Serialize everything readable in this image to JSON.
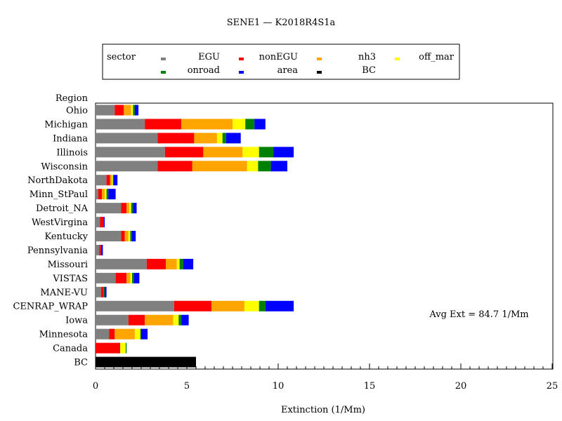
{
  "chart_data": {
    "type": "bar",
    "orientation": "horizontal",
    "stacked": true,
    "title": "SENE1 — K2018R4S1a",
    "xlabel": "Extinction (1/Mm)",
    "ylabel": "Region",
    "xlim": [
      0,
      25
    ],
    "xticks": [
      "0",
      "5",
      "10",
      "15",
      "20",
      "25"
    ],
    "legend": {
      "title": "sector",
      "placement": "top",
      "entries": [
        {
          "name": "EGU",
          "color": "#808080"
        },
        {
          "name": "nonEGU",
          "color": "#ff0000"
        },
        {
          "name": "nh3",
          "color": "#ffa500"
        },
        {
          "name": "off_mar",
          "color": "#ffff00"
        },
        {
          "name": "onroad",
          "color": "#008000"
        },
        {
          "name": "area",
          "color": "#0000ff"
        },
        {
          "name": "BC",
          "color": "#000000"
        }
      ]
    },
    "annotation": "Avg Ext =  84.7 1/Mm",
    "categories": [
      "Ohio",
      "Michigan",
      "Indiana",
      "Illinois",
      "Wisconsin",
      "NorthDakota",
      "Minn_StPaul",
      "Detroit_NA",
      "WestVirgina",
      "Kentucky",
      "Pennsylvania",
      "Missouri",
      "VISTAS",
      "MANE-VU",
      "CENRAP_WRAP",
      "Iowa",
      "Minnesota",
      "Canada",
      "BC"
    ],
    "series": [
      {
        "name": "EGU",
        "color": "#808080",
        "values": [
          1.05,
          2.7,
          3.4,
          3.8,
          3.4,
          0.6,
          0.15,
          1.4,
          0.25,
          1.4,
          0.2,
          2.8,
          1.1,
          0.3,
          4.3,
          1.8,
          0.75,
          0.0,
          0.0
        ]
      },
      {
        "name": "nonEGU",
        "color": "#ff0000",
        "values": [
          0.5,
          2.0,
          2.0,
          2.1,
          1.9,
          0.2,
          0.2,
          0.3,
          0.2,
          0.2,
          0.1,
          1.05,
          0.6,
          0.15,
          2.05,
          0.9,
          0.3,
          1.35,
          0.0
        ]
      },
      {
        "name": "nh3",
        "color": "#ffa500",
        "values": [
          0.4,
          2.8,
          1.25,
          2.15,
          3.0,
          0.1,
          0.15,
          0.15,
          0.0,
          0.2,
          0.0,
          0.6,
          0.2,
          0.0,
          1.8,
          1.55,
          1.1,
          0.0,
          0.0
        ]
      },
      {
        "name": "off_mar",
        "color": "#ffff00",
        "values": [
          0.1,
          0.7,
          0.3,
          0.9,
          0.6,
          0.05,
          0.1,
          0.1,
          0.0,
          0.1,
          0.0,
          0.15,
          0.1,
          0.0,
          0.8,
          0.3,
          0.3,
          0.3,
          0.0
        ]
      },
      {
        "name": "onroad",
        "color": "#008000",
        "values": [
          0.1,
          0.5,
          0.2,
          0.8,
          0.7,
          0.05,
          0.1,
          0.1,
          0.0,
          0.1,
          0.0,
          0.2,
          0.1,
          0.05,
          0.35,
          0.15,
          0.05,
          0.05,
          0.0
        ]
      },
      {
        "name": "area",
        "color": "#0000ff",
        "values": [
          0.2,
          0.6,
          0.8,
          1.1,
          0.9,
          0.2,
          0.4,
          0.2,
          0.05,
          0.2,
          0.1,
          0.55,
          0.3,
          0.1,
          1.55,
          0.4,
          0.35,
          0.0,
          0.0
        ]
      },
      {
        "name": "BC",
        "color": "#000000",
        "values": [
          0,
          0,
          0,
          0,
          0,
          0,
          0,
          0,
          0,
          0,
          0,
          0,
          0,
          0,
          0,
          0,
          0,
          0,
          5.5
        ]
      }
    ]
  }
}
